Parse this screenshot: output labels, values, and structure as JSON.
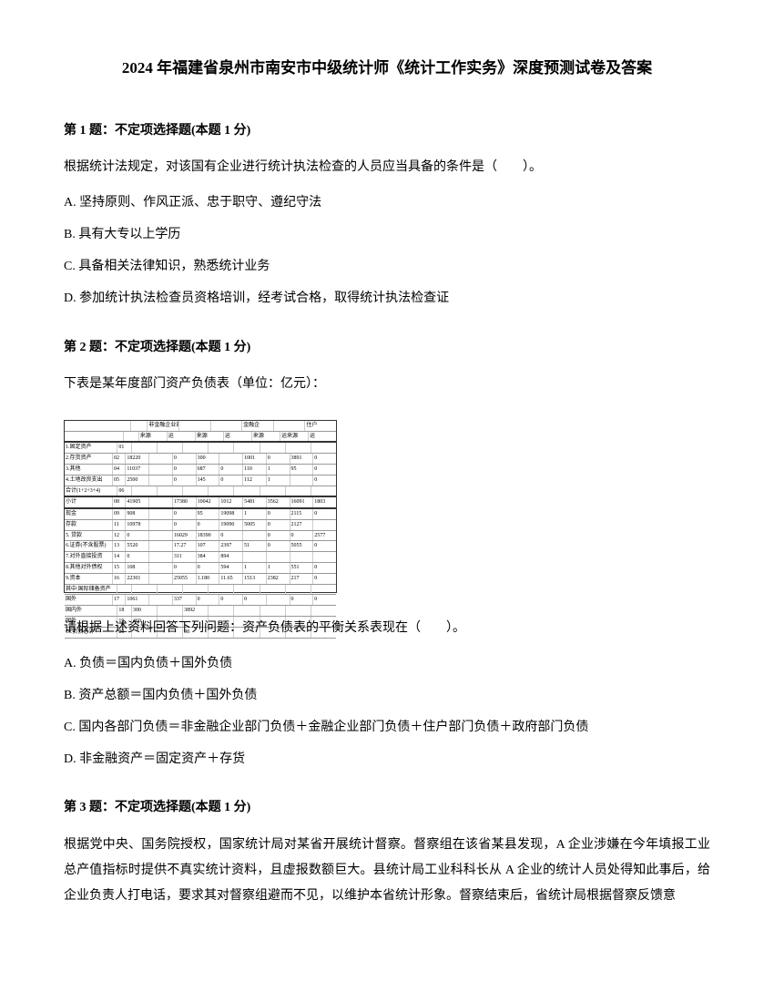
{
  "title": "2024 年福建省泉州市南安市中级统计师《统计工作实务》深度预测试卷及答案",
  "q1": {
    "header": "第 1 题：不定项选择题(本题 1 分)",
    "stem": "根据统计法规定，对该国有企业进行统计执法检查的人员应当具备的条件是（　　）。",
    "optA": "A. 坚持原则、作风正派、忠于职守、遵纪守法",
    "optB": "B. 具有大专以上学历",
    "optC": "C. 具备相关法律知识，熟悉统计业务",
    "optD": "D. 参加统计执法检查员资格培训，经考试合格，取得统计执法检查证"
  },
  "q2": {
    "header": "第 2 题：不定项选择题(本题 1 分)",
    "stem1": "下表是某年度部门资产负债表（单位：亿元）：",
    "stem2": "请根据上述资料回答下列问题：资产负债表的平衡关系表现在（　　）。",
    "optA": "A. 负债＝国内负债＋国外负债",
    "optB": "B. 资产总额＝国内负债＋国外负债",
    "optC": "C. 国内各部门负债＝非金融企业部门负债＋金融企业部门负债＋住户部门负债＋政府部门负债",
    "optD": "D. 非金融资产＝固定资产＋存货"
  },
  "q3": {
    "header": "第 3 题：不定项选择题(本题 1 分)",
    "stem": "根据党中央、国务院授权，国家统计局对某省开展统计督察。督察组在该省某县发现，A 企业涉嫌在今年填报工业总产值指标时提供不真实统计资料，且虚报数额巨大。县统计局工业科科长从 A 企业的统计人员处得知此事后，给企业负责人打电话，要求其对督察组避而不见，以维护本省统计形象。督察结束后，省统计局根据督察反馈意"
  },
  "table": {
    "header1": [
      "",
      "",
      "非金融企业部门(负债)",
      "",
      "",
      "金融企",
      "",
      "住户"
    ],
    "header2": [
      "",
      "",
      "来源",
      "运",
      "来源",
      "运",
      "来源",
      "运来源",
      "运"
    ],
    "rows": [
      [
        "1.固定资产",
        "01",
        "",
        "",
        "",
        "",
        "",
        "",
        "",
        ""
      ],
      [
        "2.存货资产",
        "02",
        "18220",
        "",
        "0",
        "300",
        "",
        "1001",
        "0",
        "3891",
        "0"
      ],
      [
        "3.其他",
        "04",
        "11037",
        "",
        "0",
        "687",
        "0",
        "110",
        "1",
        "95",
        "0"
      ],
      [
        "4.土地改良支出",
        "05",
        "2500",
        "",
        "0",
        "145",
        "0",
        "112",
        "1",
        "",
        "0"
      ],
      [
        "  合计(1+2+3+4)",
        "06",
        "",
        "",
        "",
        "",
        "",
        "",
        "",
        ""
      ],
      [
        "小计",
        "08",
        "41905",
        "",
        "17380",
        "10042",
        "1012",
        "5481",
        "3562",
        "16091",
        "1803"
      ],
      [
        "现金",
        "09",
        "908",
        "",
        "0",
        "95",
        "19098",
        "1",
        "0",
        "2115",
        "0"
      ],
      [
        "存款",
        "11",
        "10978",
        "",
        "0",
        "0",
        "19090",
        "5005",
        "0",
        "2127",
        ""
      ],
      [
        "5. 贷款",
        "12",
        "0",
        "",
        "16029",
        "18390",
        "0",
        "",
        "0",
        "0",
        "2577"
      ],
      [
        "6.证券(不含股票)",
        "13",
        "5520",
        "",
        "17.27",
        "107",
        "2397",
        "51",
        "0",
        "5055",
        "0"
      ],
      [
        "7.对外直接投资",
        "14",
        "0",
        "",
        "311",
        "384",
        "894",
        "",
        "",
        "",
        ""
      ],
      [
        "8.其他对外债权",
        "15",
        "108",
        "",
        "0",
        "0",
        "594",
        "1",
        "1",
        "551",
        "0"
      ],
      [
        "9.资本",
        "16",
        "22301",
        "",
        "25055",
        "1.180",
        "11.65",
        "1513",
        "2382",
        "217",
        "0"
      ],
      [
        "其中:国际储备资产",
        "",
        "",
        "",
        "",
        "",
        "",
        "",
        "",
        ""
      ],
      [
        "  国外",
        "17",
        "1061",
        "",
        "337",
        "0",
        "0",
        "0",
        "",
        "0",
        "0"
      ],
      [
        "  国内外",
        "18",
        "300",
        "",
        "3892",
        "",
        "",
        "",
        "",
        ""
      ],
      [
        "  国外",
        "19",
        "460",
        "",
        "",
        "",
        "",
        "",
        "",
        ""
      ],
      [
        "10.负债总计",
        "20",
        "",
        "",
        "98",
        "",
        "",
        "",
        "",
        ""
      ]
    ]
  }
}
